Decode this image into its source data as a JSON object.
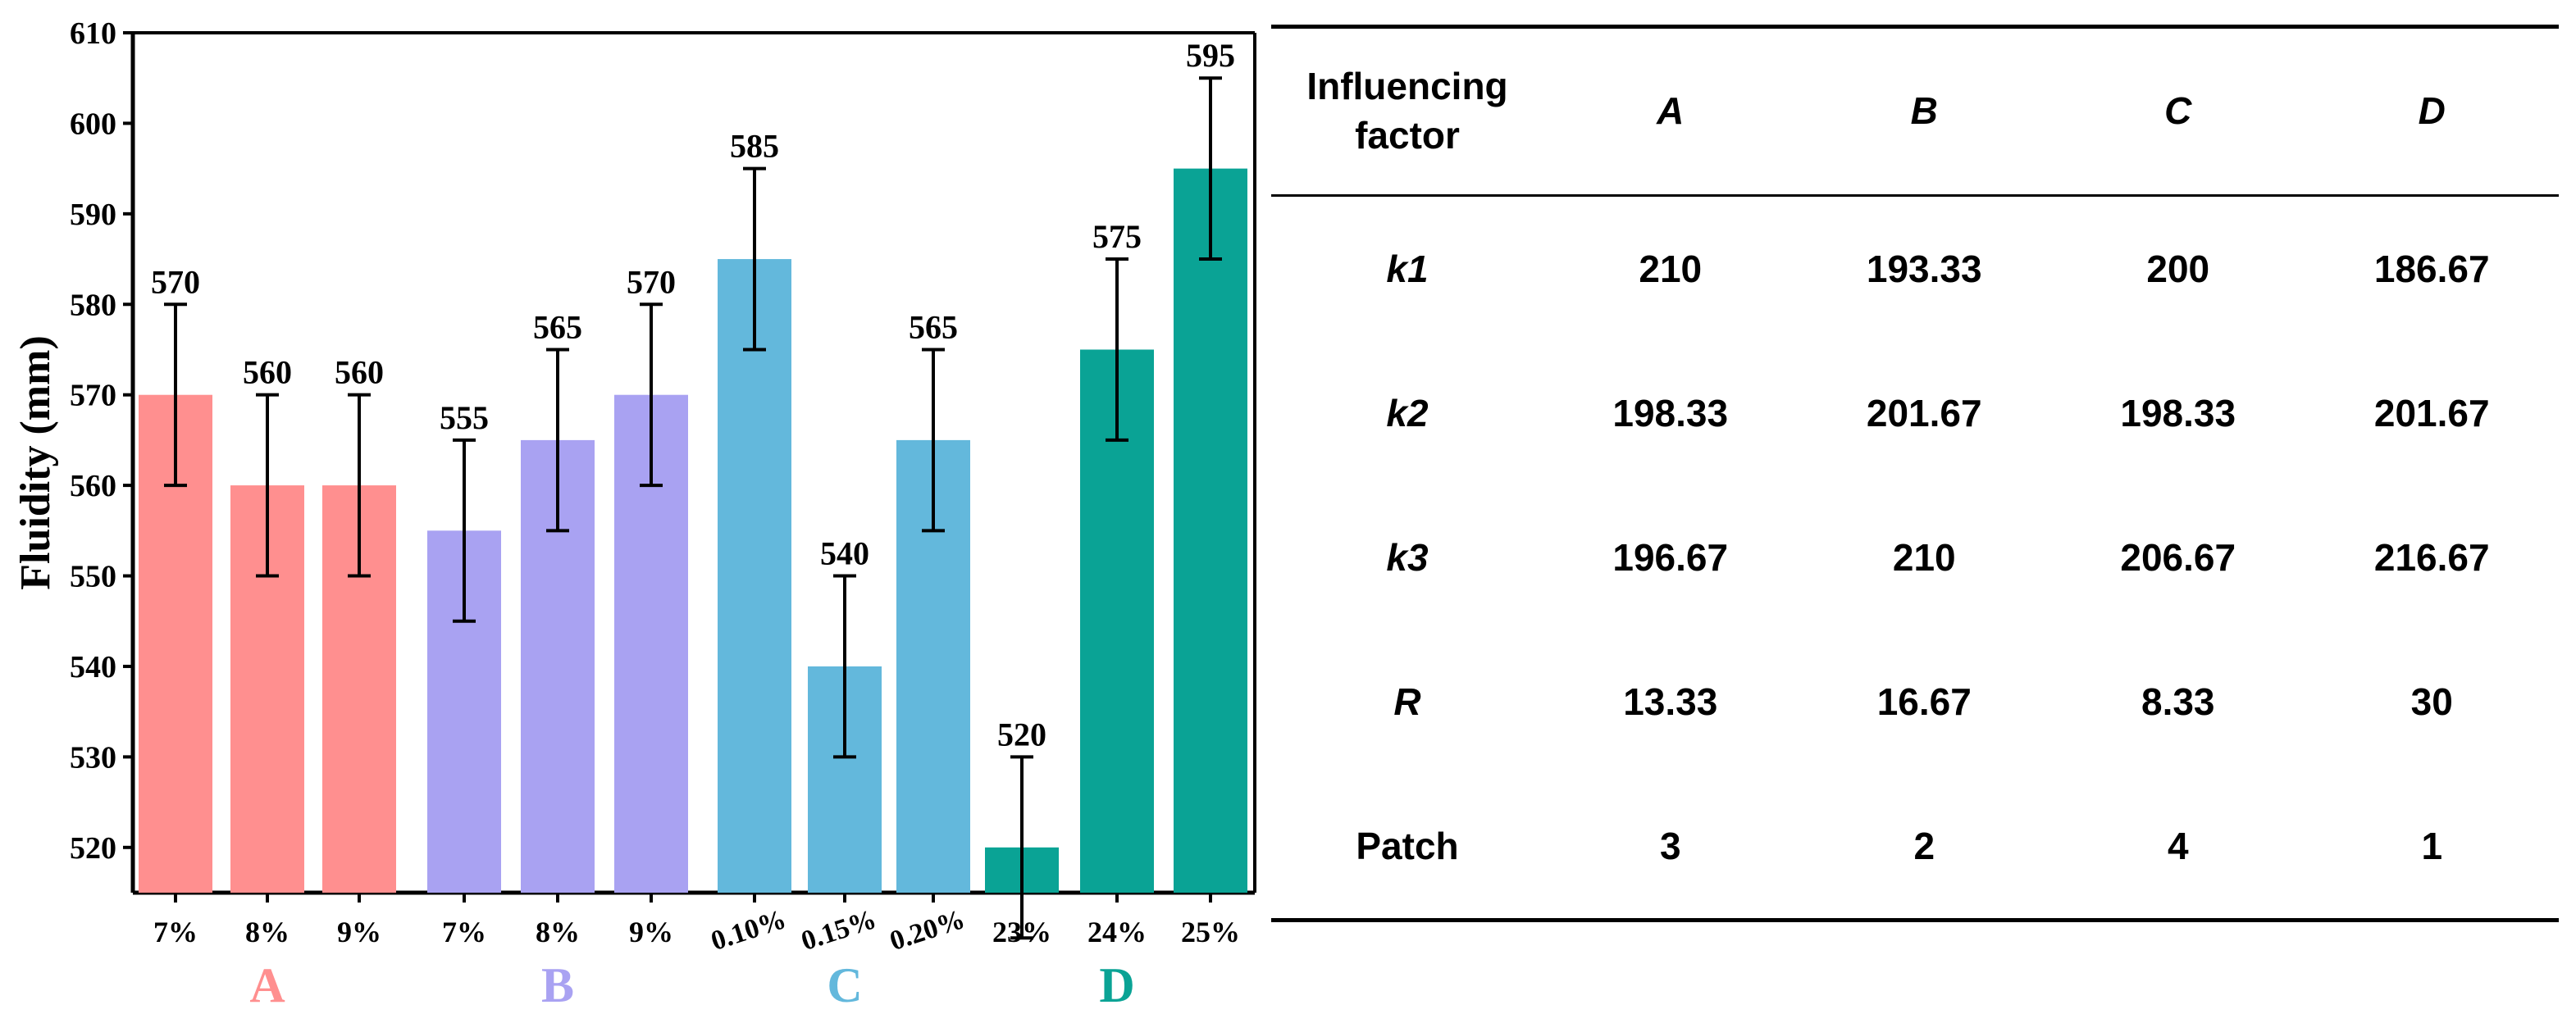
{
  "chart_data": {
    "type": "bar",
    "ylabel": "Fluidity (mm)",
    "ylim": [
      515,
      610
    ],
    "yticks": [
      520,
      530,
      540,
      550,
      560,
      570,
      580,
      590,
      600,
      610
    ],
    "error": 10,
    "groups": [
      {
        "name": "A",
        "color": "#ff8f8f",
        "categories": [
          "7%",
          "8%",
          "9%"
        ],
        "values": [
          570,
          560,
          560
        ]
      },
      {
        "name": "B",
        "color": "#a9a2f2",
        "categories": [
          "7%",
          "8%",
          "9%"
        ],
        "values": [
          555,
          565,
          570
        ]
      },
      {
        "name": "C",
        "color": "#63b8dc",
        "categories": [
          "0.10%",
          "0.15%",
          "0.20%"
        ],
        "values": [
          585,
          540,
          565
        ]
      },
      {
        "name": "D",
        "color": "#0aa395",
        "categories": [
          "23%",
          "24%",
          "25%"
        ],
        "values": [
          520,
          575,
          595
        ]
      }
    ]
  },
  "table": {
    "header_line1": "Influencing",
    "header_line2": "factor",
    "columns": [
      "A",
      "B",
      "C",
      "D"
    ],
    "rows": [
      {
        "label": "k1",
        "italic": true,
        "values": [
          "210",
          "193.33",
          "200",
          "186.67"
        ]
      },
      {
        "label": "k2",
        "italic": true,
        "values": [
          "198.33",
          "201.67",
          "198.33",
          "201.67"
        ]
      },
      {
        "label": "k3",
        "italic": true,
        "values": [
          "196.67",
          "210",
          "206.67",
          "216.67"
        ]
      },
      {
        "label": "R",
        "italic": true,
        "values": [
          "13.33",
          "16.67",
          "8.33",
          "30"
        ]
      },
      {
        "label": "Patch",
        "italic": false,
        "values": [
          "3",
          "2",
          "4",
          "1"
        ]
      }
    ]
  }
}
